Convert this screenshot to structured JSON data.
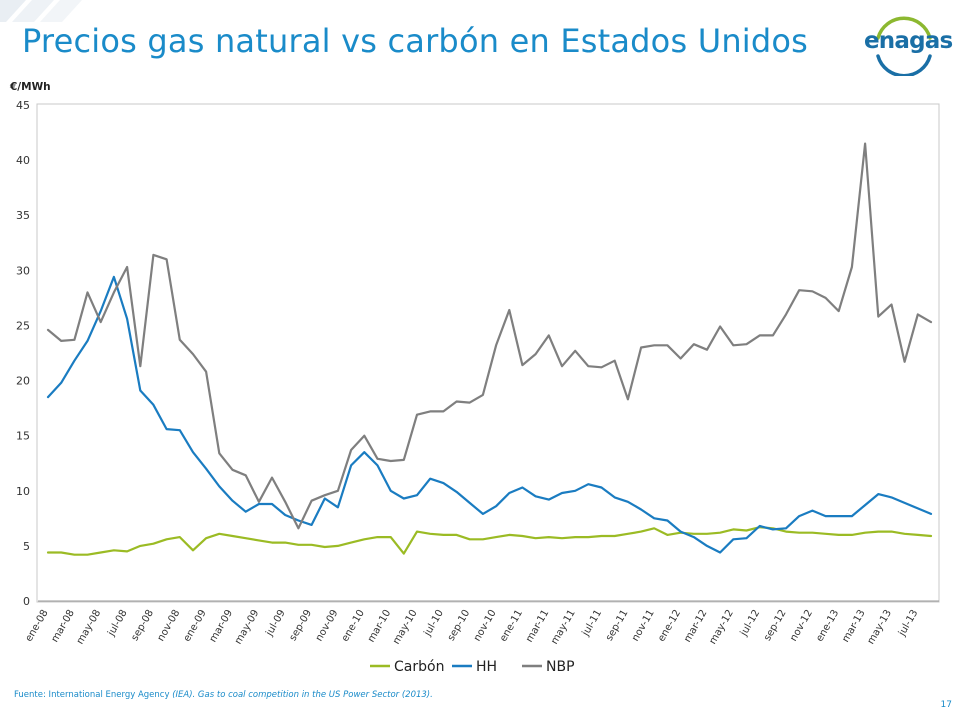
{
  "slide": {
    "title": "Precios gas natural vs carbón en Estados Unidos",
    "logo_text": "enagas",
    "source_prefix": "Fuente: International Energy Agency ",
    "source_italic": "(IEA). Gas to coal competition in the US Power Sector (2013).",
    "page_number": "17",
    "colors": {
      "title": "#1a8bc9",
      "logo_dark": "#1a6fa6",
      "logo_green": "#8cb830"
    }
  },
  "chart_data": {
    "type": "line",
    "title": "",
    "ylabel": "€/MWh",
    "xlabel": "",
    "ylim": [
      0,
      45
    ],
    "yticks": [
      0,
      5,
      10,
      15,
      20,
      25,
      30,
      35,
      40,
      45
    ],
    "grid": false,
    "legend_position": "bottom",
    "x": [
      "ene-08",
      "feb-08",
      "mar-08",
      "abr-08",
      "may-08",
      "jun-08",
      "jul-08",
      "ago-08",
      "sep-08",
      "oct-08",
      "nov-08",
      "dic-08",
      "ene-09",
      "feb-09",
      "mar-09",
      "abr-09",
      "may-09",
      "jun-09",
      "jul-09",
      "ago-09",
      "sep-09",
      "oct-09",
      "nov-09",
      "dic-09",
      "ene-10",
      "feb-10",
      "mar-10",
      "abr-10",
      "may-10",
      "jun-10",
      "jul-10",
      "ago-10",
      "sep-10",
      "oct-10",
      "nov-10",
      "dic-10",
      "ene-11",
      "feb-11",
      "mar-11",
      "abr-11",
      "may-11",
      "jun-11",
      "jul-11",
      "ago-11",
      "sep-11",
      "oct-11",
      "nov-11",
      "dic-11",
      "ene-12",
      "feb-12",
      "mar-12",
      "abr-12",
      "may-12",
      "jun-12",
      "jul-12",
      "ago-12",
      "sep-12",
      "oct-12",
      "nov-12",
      "dic-12",
      "ene-13",
      "feb-13",
      "mar-13",
      "abr-13",
      "may-13",
      "jun-13",
      "jul-13",
      "ago-13"
    ],
    "xticks": [
      "ene-08",
      "mar-08",
      "may-08",
      "jul-08",
      "sep-08",
      "nov-08",
      "ene-09",
      "mar-09",
      "may-09",
      "jul-09",
      "sep-09",
      "nov-09",
      "ene-10",
      "mar-10",
      "may-10",
      "jul-10",
      "sep-10",
      "nov-10",
      "ene-11",
      "mar-11",
      "may-11",
      "jul-11",
      "sep-11",
      "nov-11",
      "ene-12",
      "mar-12",
      "may-12",
      "jul-12",
      "sep-12",
      "nov-12",
      "ene-13",
      "mar-13",
      "may-13",
      "jul-13"
    ],
    "series": [
      {
        "name": "Carbón",
        "color": "#9bbb24",
        "values": [
          4.4,
          4.4,
          4.2,
          4.2,
          4.4,
          4.6,
          4.5,
          5.0,
          5.2,
          5.6,
          5.8,
          4.6,
          5.7,
          6.1,
          5.9,
          5.7,
          5.5,
          5.3,
          5.3,
          5.1,
          5.1,
          4.9,
          5.0,
          5.3,
          5.6,
          5.8,
          5.8,
          4.3,
          6.3,
          6.1,
          6.0,
          6.0,
          5.6,
          5.6,
          5.8,
          6.0,
          5.9,
          5.7,
          5.8,
          5.7,
          5.8,
          5.8,
          5.9,
          5.9,
          6.1,
          6.3,
          6.6,
          6.0,
          6.2,
          6.1,
          6.1,
          6.2,
          6.5,
          6.4,
          6.7,
          6.6,
          6.3,
          6.2,
          6.2,
          6.1,
          6.0,
          6.0,
          6.2,
          6.3,
          6.3,
          6.1,
          6.0,
          5.9
        ]
      },
      {
        "name": "HH",
        "color": "#1a7cc1",
        "values": [
          18.5,
          19.8,
          21.8,
          23.6,
          26.3,
          29.4,
          25.6,
          19.1,
          17.8,
          15.6,
          15.5,
          13.5,
          12.0,
          10.4,
          9.1,
          8.1,
          8.8,
          8.8,
          7.8,
          7.3,
          6.9,
          9.3,
          8.5,
          12.3,
          13.5,
          12.3,
          10.0,
          9.3,
          9.6,
          11.1,
          10.7,
          9.9,
          8.9,
          7.9,
          8.6,
          9.8,
          10.3,
          9.5,
          9.2,
          9.8,
          10.0,
          10.6,
          10.3,
          9.4,
          9.0,
          8.3,
          7.5,
          7.3,
          6.3,
          5.8,
          5.0,
          4.4,
          5.6,
          5.7,
          6.8,
          6.5,
          6.6,
          7.7,
          8.2,
          7.7,
          7.7,
          7.7,
          8.7,
          9.7,
          9.4,
          8.9,
          8.4,
          7.9
        ]
      },
      {
        "name": "NBP",
        "color": "#7f7f7f",
        "values": [
          24.6,
          23.6,
          23.7,
          28.0,
          25.3,
          28.0,
          30.3,
          21.3,
          31.4,
          31.0,
          23.7,
          22.4,
          20.8,
          13.4,
          11.9,
          11.4,
          9.0,
          11.2,
          9.0,
          6.6,
          9.1,
          9.6,
          10.0,
          13.7,
          15.0,
          12.9,
          12.7,
          12.8,
          16.9,
          17.2,
          17.2,
          18.1,
          18.0,
          18.7,
          23.2,
          26.4,
          21.4,
          22.4,
          24.1,
          21.3,
          22.7,
          21.3,
          21.2,
          21.8,
          18.3,
          23.0,
          23.2,
          23.2,
          22.0,
          23.3,
          22.8,
          24.9,
          23.2,
          23.3,
          24.1,
          24.1,
          26.0,
          28.2,
          28.1,
          27.5,
          26.3,
          30.3,
          41.5,
          25.8,
          26.9,
          21.7,
          26.0,
          25.3
        ]
      }
    ]
  }
}
